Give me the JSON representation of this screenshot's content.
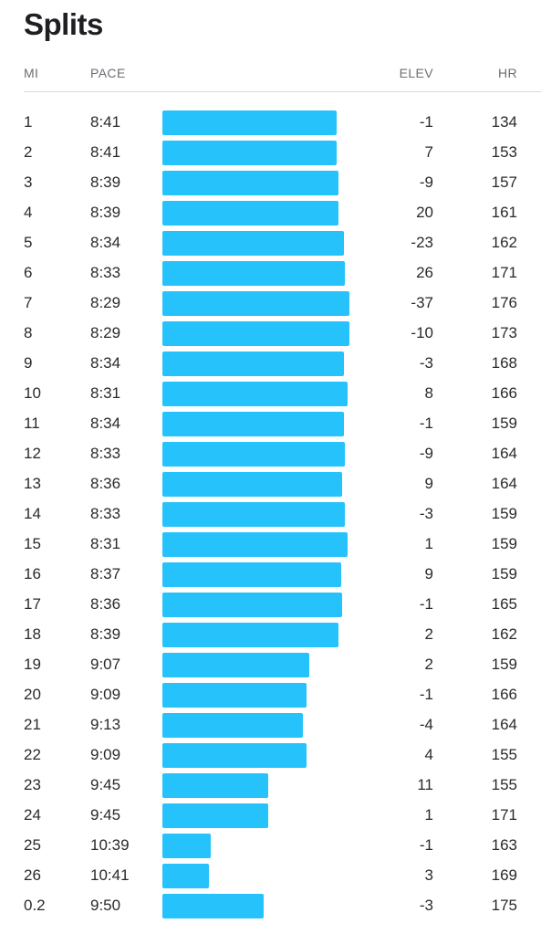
{
  "title": "Splits",
  "headers": {
    "mi": "MI",
    "pace": "PACE",
    "elev": "ELEV",
    "hr": "HR"
  },
  "colors": {
    "bar": "#25c2fb",
    "text": "#2a2a2e",
    "header": "#6d6d75",
    "divider": "#d9d9de"
  },
  "chart_data": {
    "type": "bar",
    "orientation": "horizontal",
    "title": "Splits",
    "rows": [
      {
        "mi": "1",
        "pace": "8:41",
        "elev": "-1",
        "hr": "134"
      },
      {
        "mi": "2",
        "pace": "8:41",
        "elev": "7",
        "hr": "153"
      },
      {
        "mi": "3",
        "pace": "8:39",
        "elev": "-9",
        "hr": "157"
      },
      {
        "mi": "4",
        "pace": "8:39",
        "elev": "20",
        "hr": "161"
      },
      {
        "mi": "5",
        "pace": "8:34",
        "elev": "-23",
        "hr": "162"
      },
      {
        "mi": "6",
        "pace": "8:33",
        "elev": "26",
        "hr": "171"
      },
      {
        "mi": "7",
        "pace": "8:29",
        "elev": "-37",
        "hr": "176"
      },
      {
        "mi": "8",
        "pace": "8:29",
        "elev": "-10",
        "hr": "173"
      },
      {
        "mi": "9",
        "pace": "8:34",
        "elev": "-3",
        "hr": "168"
      },
      {
        "mi": "10",
        "pace": "8:31",
        "elev": "8",
        "hr": "166"
      },
      {
        "mi": "11",
        "pace": "8:34",
        "elev": "-1",
        "hr": "159"
      },
      {
        "mi": "12",
        "pace": "8:33",
        "elev": "-9",
        "hr": "164"
      },
      {
        "mi": "13",
        "pace": "8:36",
        "elev": "9",
        "hr": "164"
      },
      {
        "mi": "14",
        "pace": "8:33",
        "elev": "-3",
        "hr": "159"
      },
      {
        "mi": "15",
        "pace": "8:31",
        "elev": "1",
        "hr": "159"
      },
      {
        "mi": "16",
        "pace": "8:37",
        "elev": "9",
        "hr": "159"
      },
      {
        "mi": "17",
        "pace": "8:36",
        "elev": "-1",
        "hr": "165"
      },
      {
        "mi": "18",
        "pace": "8:39",
        "elev": "2",
        "hr": "162"
      },
      {
        "mi": "19",
        "pace": "9:07",
        "elev": "2",
        "hr": "159"
      },
      {
        "mi": "20",
        "pace": "9:09",
        "elev": "-1",
        "hr": "166"
      },
      {
        "mi": "21",
        "pace": "9:13",
        "elev": "-4",
        "hr": "164"
      },
      {
        "mi": "22",
        "pace": "9:09",
        "elev": "4",
        "hr": "155"
      },
      {
        "mi": "23",
        "pace": "9:45",
        "elev": "11",
        "hr": "155"
      },
      {
        "mi": "24",
        "pace": "9:45",
        "elev": "1",
        "hr": "171"
      },
      {
        "mi": "25",
        "pace": "10:39",
        "elev": "-1",
        "hr": "163"
      },
      {
        "mi": "26",
        "pace": "10:41",
        "elev": "3",
        "hr": "169"
      },
      {
        "mi": "0.2",
        "pace": "9:50",
        "elev": "-3",
        "hr": "175"
      }
    ]
  }
}
